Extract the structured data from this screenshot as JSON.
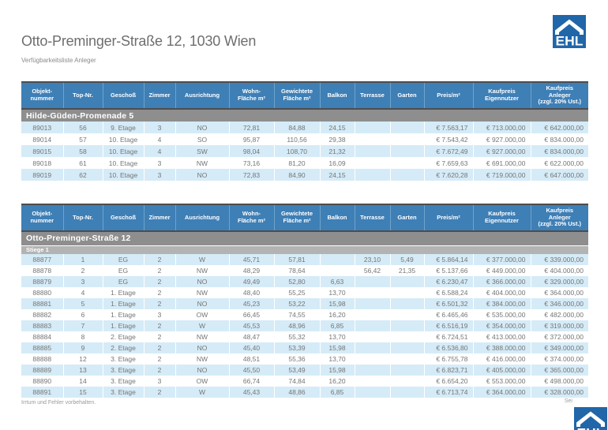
{
  "page": {
    "title": "Otto-Preminger-Straße 12, 1030 Wien",
    "subtitle": "Verfügbarkeitsliste Anleger",
    "footer_left": "Irrtum und Fehler vorbehalten.",
    "footer_right": "Sei",
    "logo_text": "EHL"
  },
  "colors": {
    "header_blue": "#3e7fb6",
    "stripe_blue": "#d5ebf7",
    "section_gray": "#8e8e8e",
    "subsection_gray": "#b3b3b3",
    "logo_blue": "#2066a8",
    "border_dark": "#4d4d4d",
    "text_gray": "#757575"
  },
  "columns": [
    "Objekt-\nnummer",
    "Top-Nr.",
    "Geschoß",
    "Zimmer",
    "Ausrichtung",
    "Wohn-\nFläche m²",
    "Gewichtete\nFläche m²",
    "Balkon",
    "Terrasse",
    "Garten",
    "Preis/m²",
    "Kaufpreis\nEigennutzer",
    "Kaufpreis\nAnleger\n(zzgl. 20% Ust.)"
  ],
  "tables": [
    {
      "section": "Hilde-Güden-Promenade 5",
      "subsection": null,
      "rows": [
        [
          "89013",
          "56",
          "9. Etage",
          "3",
          "NO",
          "72,81",
          "84,88",
          "24,15",
          "",
          "",
          "€ 7.563,17",
          "€ 713.000,00",
          "€ 642.000,00"
        ],
        [
          "89014",
          "57",
          "10. Etage",
          "4",
          "SO",
          "95,87",
          "110,56",
          "29,38",
          "",
          "",
          "€ 7.543,42",
          "€ 927.000,00",
          "€ 834.000,00"
        ],
        [
          "89015",
          "58",
          "10. Etage",
          "4",
          "SW",
          "98,04",
          "108,70",
          "21,32",
          "",
          "",
          "€ 7.672,49",
          "€ 927.000,00",
          "€ 834.000,00"
        ],
        [
          "89018",
          "61",
          "10. Etage",
          "3",
          "NW",
          "73,16",
          "81,20",
          "16,09",
          "",
          "",
          "€ 7.659,63",
          "€ 691.000,00",
          "€ 622.000,00"
        ],
        [
          "89019",
          "62",
          "10. Etage",
          "3",
          "NO",
          "72,83",
          "84,90",
          "24,15",
          "",
          "",
          "€ 7.620,28",
          "€ 719.000,00",
          "€ 647.000,00"
        ]
      ]
    },
    {
      "section": "Otto-Preminger-Straße 12",
      "subsection": "Stiege 1",
      "rows": [
        [
          "88877",
          "1",
          "EG",
          "2",
          "W",
          "45,71",
          "57,81",
          "",
          "23,10",
          "5,49",
          "€ 5.864,14",
          "€ 377.000,00",
          "€ 339.000,00"
        ],
        [
          "88878",
          "2",
          "EG",
          "2",
          "NW",
          "48,29",
          "78,64",
          "",
          "56,42",
          "21,35",
          "€ 5.137,66",
          "€ 449.000,00",
          "€ 404.000,00"
        ],
        [
          "88879",
          "3",
          "EG",
          "2",
          "NO",
          "49,49",
          "52,80",
          "6,63",
          "",
          "",
          "€ 6.230,47",
          "€ 366.000,00",
          "€ 329.000,00"
        ],
        [
          "88880",
          "4",
          "1. Etage",
          "2",
          "NW",
          "48,40",
          "55,25",
          "13,70",
          "",
          "",
          "€ 6.588,24",
          "€ 404.000,00",
          "€ 364.000,00"
        ],
        [
          "88881",
          "5",
          "1. Etage",
          "2",
          "NO",
          "45,23",
          "53,22",
          "15,98",
          "",
          "",
          "€ 6.501,32",
          "€ 384.000,00",
          "€ 346.000,00"
        ],
        [
          "88882",
          "6",
          "1. Etage",
          "3",
          "OW",
          "66,45",
          "74,55",
          "16,20",
          "",
          "",
          "€ 6.465,46",
          "€ 535.000,00",
          "€ 482.000,00"
        ],
        [
          "88883",
          "7",
          "1. Etage",
          "2",
          "W",
          "45,53",
          "48,96",
          "6,85",
          "",
          "",
          "€ 6.516,19",
          "€ 354.000,00",
          "€ 319.000,00"
        ],
        [
          "88884",
          "8",
          "2. Etage",
          "2",
          "NW",
          "48,47",
          "55,32",
          "13,70",
          "",
          "",
          "€ 6.724,51",
          "€ 413.000,00",
          "€ 372.000,00"
        ],
        [
          "88885",
          "9",
          "2. Etage",
          "2",
          "NO",
          "45,40",
          "53,39",
          "15,98",
          "",
          "",
          "€ 6.536,80",
          "€ 388.000,00",
          "€ 349.000,00"
        ],
        [
          "88888",
          "12",
          "3. Etage",
          "2",
          "NW",
          "48,51",
          "55,36",
          "13,70",
          "",
          "",
          "€ 6.755,78",
          "€ 416.000,00",
          "€ 374.000,00"
        ],
        [
          "88889",
          "13",
          "3. Etage",
          "2",
          "NO",
          "45,50",
          "53,49",
          "15,98",
          "",
          "",
          "€ 6.823,71",
          "€ 405.000,00",
          "€ 365.000,00"
        ],
        [
          "88890",
          "14",
          "3. Etage",
          "3",
          "OW",
          "66,74",
          "74,84",
          "16,20",
          "",
          "",
          "€ 6.654,20",
          "€ 553.000,00",
          "€ 498.000,00"
        ],
        [
          "88891",
          "15",
          "3. Etage",
          "2",
          "W",
          "45,43",
          "48,86",
          "6,85",
          "",
          "",
          "€ 6.713,74",
          "€ 364.000,00",
          "€ 328.000,00"
        ]
      ]
    }
  ]
}
